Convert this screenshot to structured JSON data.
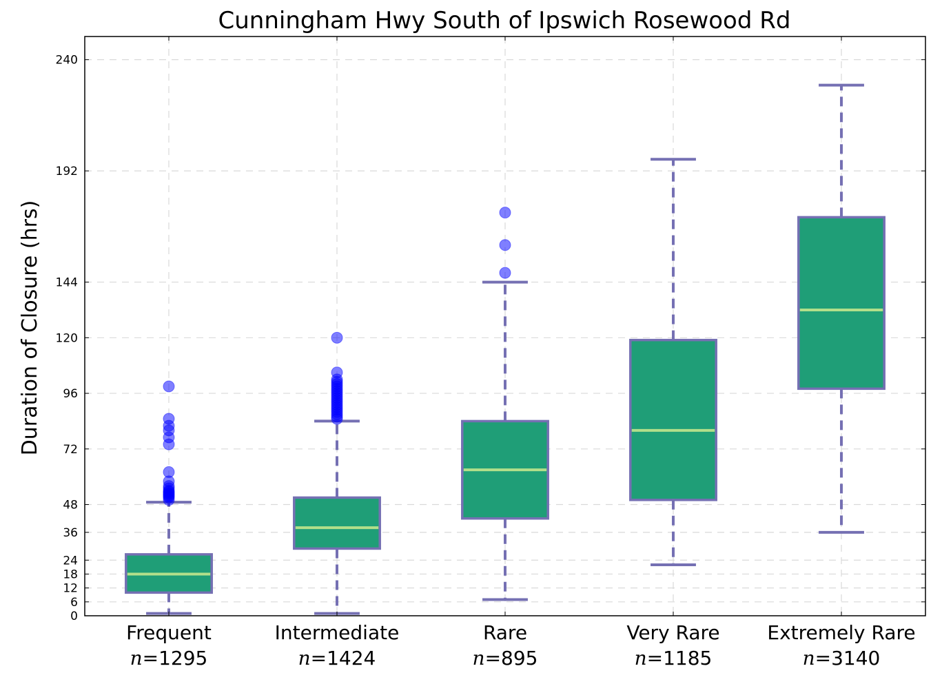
{
  "chart_data": {
    "type": "box",
    "title": "Cunningham Hwy  South of Ipswich Rosewood Rd",
    "xlabel": "",
    "ylabel": "Duration of Closure (hrs)",
    "ylim": [
      0,
      250
    ],
    "yticks": [
      0,
      6,
      12,
      18,
      24,
      36,
      48,
      72,
      96,
      120,
      144,
      192,
      240
    ],
    "grid": true,
    "categories": [
      "Frequent",
      "Intermediate",
      "Rare",
      "Very Rare",
      "Extremely Rare"
    ],
    "n_prefix": "n",
    "sample_sizes": [
      "=1295",
      "=1424",
      "=895",
      "=1185",
      "=3140"
    ],
    "boxes": [
      {
        "category": "Frequent",
        "whisker_low": 1,
        "q1": 10,
        "median": 18,
        "q3": 26.5,
        "whisker_high": 49,
        "outliers": [
          50,
          51,
          51.5,
          52,
          52.5,
          53,
          53.5,
          54,
          55,
          56,
          58,
          62,
          74,
          77,
          80,
          82,
          85,
          99
        ]
      },
      {
        "category": "Intermediate",
        "whisker_low": 1,
        "q1": 29,
        "median": 38,
        "q3": 51,
        "whisker_high": 84,
        "outliers": [
          85,
          86,
          87,
          88,
          89,
          90,
          91,
          92,
          93,
          94,
          95,
          96,
          97,
          98,
          99,
          100,
          101,
          102,
          105,
          120
        ]
      },
      {
        "category": "Rare",
        "whisker_low": 7,
        "q1": 42,
        "median": 63,
        "q3": 84,
        "whisker_high": 144,
        "outliers": [
          148,
          160,
          174
        ]
      },
      {
        "category": "Very Rare",
        "whisker_low": 22,
        "q1": 50,
        "median": 80,
        "q3": 119,
        "whisker_high": 197,
        "outliers": []
      },
      {
        "category": "Extremely Rare",
        "whisker_low": 36,
        "q1": 98,
        "median": 132,
        "q3": 172,
        "whisker_high": 229,
        "outliers": []
      }
    ],
    "colors": {
      "box_fill": "#1f9e77",
      "box_edge": "#7570b3",
      "median": "#b2df8a",
      "whisker": "#7570b3",
      "outlier": "#0000ff",
      "grid": "#d9d9d9",
      "axes": "#000000"
    }
  }
}
